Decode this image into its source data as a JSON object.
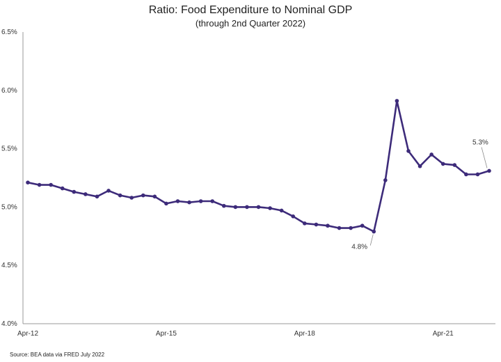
{
  "chart_data": {
    "type": "line",
    "title": "Ratio: Food Expenditure to Nominal GDP",
    "subtitle": "(through 2nd Quarter 2022)",
    "source": "Source: BEA data via FRED July 2022",
    "xlabel": "",
    "ylabel": "",
    "ylim": [
      4.0,
      6.5
    ],
    "y_ticks": [
      "4.0%",
      "4.5%",
      "5.0%",
      "5.5%",
      "6.0%",
      "6.5%"
    ],
    "y_tick_values": [
      4.0,
      4.5,
      5.0,
      5.5,
      6.0,
      6.5
    ],
    "x_ticks": [
      "Apr-12",
      "Apr-15",
      "Apr-18",
      "Apr-21"
    ],
    "x_tick_index": [
      0,
      12,
      24,
      36
    ],
    "grid": false,
    "line_color": "#3d2b7a",
    "series": [
      {
        "values": [
          5.21,
          5.19,
          5.19,
          5.16,
          5.13,
          5.11,
          5.09,
          5.14,
          5.1,
          5.08,
          5.1,
          5.09,
          5.03,
          5.05,
          5.04,
          5.05,
          5.05,
          5.01,
          5.0,
          5.0,
          5.0,
          4.99,
          4.97,
          4.92,
          4.86,
          4.85,
          4.84,
          4.82,
          4.82,
          4.84,
          4.79,
          5.23,
          5.91,
          5.48,
          5.35,
          5.45,
          5.37,
          5.36,
          5.28,
          5.28,
          5.31
        ]
      }
    ],
    "annotations": [
      {
        "text": "4.8%",
        "index": 30
      },
      {
        "text": "5.3%",
        "index": 40
      }
    ]
  }
}
